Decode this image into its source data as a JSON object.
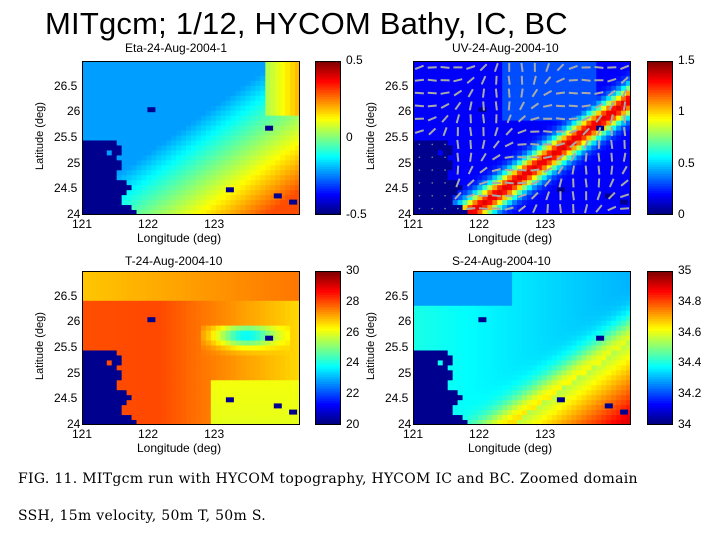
{
  "title": "MITgcm; 1/12, HYCOM Bathy, IC, BC",
  "caption": {
    "line1": "FIG. 11.  MITgcm run with HYCOM topography, HYCOM IC and BC. Zoomed domain",
    "line2": "SSH, 15m velocity, 50m T, 50m S."
  },
  "chart_data": [
    {
      "type": "heatmap",
      "title": "Eta-24-Aug-2004-1",
      "xlabel": "Longitude (deg)",
      "ylabel": "Latitude (deg)",
      "xlim": [
        121,
        124.3
      ],
      "ylim": [
        24,
        27
      ],
      "x_ticks": [
        "121",
        "122",
        "123"
      ],
      "y_ticks": [
        "26.5",
        "26",
        "25.5",
        "25",
        "24.5",
        "24"
      ],
      "colorbar": {
        "ticks": [
          "0.5",
          "0",
          "-0.5"
        ],
        "min": -0.5,
        "max": 0.5
      },
      "pattern": "ssh"
    },
    {
      "type": "heatmap",
      "title": "UV-24-Aug-2004-10",
      "xlabel": "Longitude (deg)",
      "ylabel": "Latitude (deg)",
      "xlim": [
        121,
        124.3
      ],
      "ylim": [
        24,
        27
      ],
      "x_ticks": [
        "121",
        "122",
        "123"
      ],
      "y_ticks": [
        "26.5",
        "26",
        "25.5",
        "25",
        "24.5",
        "24"
      ],
      "colorbar": {
        "ticks": [
          "1.5",
          "1",
          "0.5",
          "0"
        ],
        "min": 0,
        "max": 1.5
      },
      "pattern": "speed",
      "overlay": "velocity vectors"
    },
    {
      "type": "heatmap",
      "title": "T-24-Aug-2004-10",
      "xlabel": "Longitude (deg)",
      "ylabel": "Latitude (deg)",
      "xlim": [
        121,
        124.3
      ],
      "ylim": [
        24,
        27
      ],
      "x_ticks": [
        "121",
        "122",
        "123"
      ],
      "y_ticks": [
        "26.5",
        "26",
        "25.5",
        "25",
        "24.5",
        "24"
      ],
      "colorbar": {
        "ticks": [
          "30",
          "28",
          "26",
          "24",
          "22",
          "20"
        ],
        "min": 20,
        "max": 30
      },
      "pattern": "temp"
    },
    {
      "type": "heatmap",
      "title": "S-24-Aug-2004-10",
      "xlabel": "Longitude (deg)",
      "ylabel": "Latitude (deg)",
      "xlim": [
        121,
        124.3
      ],
      "ylim": [
        24,
        27
      ],
      "x_ticks": [
        "121",
        "122",
        "123"
      ],
      "y_ticks": [
        "26.5",
        "26",
        "25.5",
        "25",
        "24.5",
        "24"
      ],
      "colorbar": {
        "ticks": [
          "35",
          "34.8",
          "34.6",
          "34.4",
          "34.2",
          "34"
        ],
        "min": 34,
        "max": 35
      },
      "pattern": "salt"
    }
  ]
}
